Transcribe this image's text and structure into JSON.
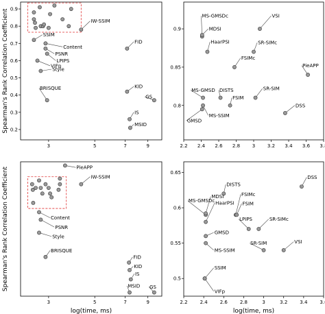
{
  "chart_data": [
    {
      "type": "scatter",
      "xlabel": "",
      "ylabel": "Spearman's Rank Correlation Coefficient",
      "x_scale": "log",
      "xlim": [
        2.2,
        10.5
      ],
      "ylim": [
        0.14,
        0.94
      ],
      "xticks": [
        3,
        5,
        7,
        9
      ],
      "yticks": [
        0.2,
        0.3,
        0.4,
        0.5,
        0.6,
        0.7,
        0.8,
        0.9
      ],
      "grid": false,
      "highlight_box": {
        "x": [
          2.38,
          4.3
        ],
        "y": [
          0.765,
          0.935
        ]
      },
      "points": [
        {
          "x": 2.55,
          "y": 0.88,
          "label": ""
        },
        {
          "x": 2.55,
          "y": 0.84,
          "label": ""
        },
        {
          "x": 2.58,
          "y": 0.82,
          "label": ""
        },
        {
          "x": 2.6,
          "y": 0.79,
          "label": ""
        },
        {
          "x": 2.72,
          "y": 0.91,
          "label": ""
        },
        {
          "x": 2.75,
          "y": 0.8,
          "label": ""
        },
        {
          "x": 2.82,
          "y": 0.8,
          "label": ""
        },
        {
          "x": 2.85,
          "y": 0.81,
          "label": ""
        },
        {
          "x": 3.0,
          "y": 0.79,
          "label": ""
        },
        {
          "x": 3.05,
          "y": 0.87,
          "label": ""
        },
        {
          "x": 3.2,
          "y": 0.92,
          "label": ""
        },
        {
          "x": 3.5,
          "y": 0.84,
          "label": ""
        },
        {
          "x": 3.75,
          "y": 0.8,
          "label": ""
        },
        {
          "x": 3.85,
          "y": 0.9,
          "label": ""
        },
        {
          "x": 4.3,
          "y": 0.78,
          "label": "IW-SSIM",
          "lx": 4.75,
          "ly": 0.83
        },
        {
          "x": 2.55,
          "y": 0.72,
          "label": "SSIM",
          "lx": 2.8,
          "ly": 0.75
        },
        {
          "x": 2.9,
          "y": 0.7,
          "label": "Content",
          "lx": 3.5,
          "ly": 0.68
        },
        {
          "x": 2.9,
          "y": 0.67,
          "label": "PSNR",
          "lx": 3.2,
          "ly": 0.64
        },
        {
          "x": 2.95,
          "y": 0.64,
          "label": "LPIPS",
          "lx": 3.25,
          "ly": 0.6
        },
        {
          "x": 2.65,
          "y": 0.6,
          "label": "VIFp",
          "lx": 3.05,
          "ly": 0.57
        },
        {
          "x": 2.75,
          "y": 0.54,
          "label": "Style",
          "lx": 3.1,
          "ly": 0.55
        },
        {
          "x": 2.95,
          "y": 0.37,
          "label": "BRISQUE",
          "lx": 2.7,
          "ly": 0.44
        },
        {
          "x": 7.15,
          "y": 0.67,
          "label": "FID",
          "lx": 7.7,
          "ly": 0.71
        },
        {
          "x": 7.15,
          "y": 0.42,
          "label": "KID",
          "lx": 7.7,
          "ly": 0.45
        },
        {
          "x": 9.65,
          "y": 0.37,
          "label": "GS",
          "lx": 8.7,
          "ly": 0.39
        },
        {
          "x": 7.35,
          "y": 0.26,
          "label": "IS",
          "lx": 7.7,
          "ly": 0.3
        },
        {
          "x": 7.4,
          "y": 0.21,
          "label": "MSID",
          "lx": 7.7,
          "ly": 0.23
        }
      ]
    },
    {
      "type": "scatter",
      "xlabel": "",
      "ylabel": "",
      "xlim": [
        2.2,
        3.8
      ],
      "ylim": [
        0.755,
        0.935
      ],
      "xticks": [
        2.2,
        2.4,
        2.6,
        2.8,
        3.0,
        3.2,
        3.4,
        3.6,
        3.8
      ],
      "yticks": [
        0.8,
        0.85,
        0.9
      ],
      "grid": false,
      "points": [
        {
          "x": 2.41,
          "y": 0.89,
          "label": "MS-GMSDc",
          "lx": 2.4,
          "ly": 0.917
        },
        {
          "x": 2.41,
          "y": 0.892,
          "label": "MDSI",
          "lx": 2.48,
          "ly": 0.9
        },
        {
          "x": 2.47,
          "y": 0.87,
          "label": "HaarPSI",
          "lx": 2.5,
          "ly": 0.883
        },
        {
          "x": 3.07,
          "y": 0.9,
          "label": "VSI",
          "lx": 3.2,
          "ly": 0.917
        },
        {
          "x": 3.0,
          "y": 0.87,
          "label": "SR-SIMc",
          "lx": 3.04,
          "ly": 0.882
        },
        {
          "x": 2.78,
          "y": 0.85,
          "label": "FSIMc",
          "lx": 2.85,
          "ly": 0.862
        },
        {
          "x": 3.62,
          "y": 0.84,
          "label": "PieAPP",
          "lx": 3.55,
          "ly": 0.852
        },
        {
          "x": 2.42,
          "y": 0.81,
          "label": "MS-GMSD",
          "lx": 2.28,
          "ly": 0.82
        },
        {
          "x": 2.62,
          "y": 0.81,
          "label": "DISTS",
          "lx": 2.6,
          "ly": 0.82
        },
        {
          "x": 2.73,
          "y": 0.8,
          "label": "FSIM",
          "lx": 2.75,
          "ly": 0.81
        },
        {
          "x": 3.02,
          "y": 0.81,
          "label": "SR-SIM",
          "lx": 3.1,
          "ly": 0.822
        },
        {
          "x": 2.42,
          "y": 0.8,
          "label": "MS-SSIM",
          "lx": 2.48,
          "ly": 0.787
        },
        {
          "x": 2.41,
          "y": 0.795,
          "label": "GMSD",
          "lx": 2.23,
          "ly": 0.78
        },
        {
          "x": 3.36,
          "y": 0.79,
          "label": "DSS",
          "lx": 3.47,
          "ly": 0.8
        }
      ]
    },
    {
      "type": "scatter",
      "xlabel": "log(time, ms)",
      "ylabel": "Spearman's Rank Correlation Coefficient",
      "x_scale": "log",
      "xlim": [
        2.2,
        10.5
      ],
      "ylim": [
        0.0,
        0.72
      ],
      "xticks": [
        3,
        5,
        7,
        9
      ],
      "yticks": [],
      "grid": false,
      "highlight_box": {
        "x": [
          2.38,
          3.65
        ],
        "y": [
          0.47,
          0.64
        ]
      },
      "points": [
        {
          "x": 2.5,
          "y": 0.6,
          "label": ""
        },
        {
          "x": 2.52,
          "y": 0.57,
          "label": ""
        },
        {
          "x": 2.53,
          "y": 0.5,
          "label": ""
        },
        {
          "x": 2.6,
          "y": 0.58,
          "label": ""
        },
        {
          "x": 2.7,
          "y": 0.62,
          "label": ""
        },
        {
          "x": 2.75,
          "y": 0.58,
          "label": ""
        },
        {
          "x": 2.8,
          "y": 0.55,
          "label": ""
        },
        {
          "x": 2.9,
          "y": 0.6,
          "label": ""
        },
        {
          "x": 3.0,
          "y": 0.58,
          "label": ""
        },
        {
          "x": 3.05,
          "y": 0.55,
          "label": ""
        },
        {
          "x": 3.1,
          "y": 0.53,
          "label": ""
        },
        {
          "x": 3.35,
          "y": 0.57,
          "label": ""
        },
        {
          "x": 3.4,
          "y": 0.6,
          "label": ""
        },
        {
          "x": 3.4,
          "y": 0.63,
          "label": ""
        },
        {
          "x": 3.6,
          "y": 0.7,
          "label": "PieAPP",
          "lx": 4.05,
          "ly": 0.69
        },
        {
          "x": 4.3,
          "y": 0.6,
          "label": "IW-SSIM",
          "lx": 4.75,
          "ly": 0.64
        },
        {
          "x": 2.7,
          "y": 0.45,
          "label": "Content",
          "lx": 3.05,
          "ly": 0.42
        },
        {
          "x": 2.75,
          "y": 0.41,
          "label": "PSNR",
          "lx": 3.2,
          "ly": 0.37
        },
        {
          "x": 2.7,
          "y": 0.34,
          "label": "Style",
          "lx": 3.1,
          "ly": 0.32
        },
        {
          "x": 2.9,
          "y": 0.21,
          "label": "BRISQUE",
          "lx": 3.05,
          "ly": 0.245
        },
        {
          "x": 7.3,
          "y": 0.18,
          "label": "FID",
          "lx": 7.6,
          "ly": 0.21
        },
        {
          "x": 7.35,
          "y": 0.14,
          "label": "KID",
          "lx": 7.65,
          "ly": 0.16
        },
        {
          "x": 7.45,
          "y": 0.09,
          "label": "IS",
          "lx": 7.75,
          "ly": 0.12
        },
        {
          "x": 7.35,
          "y": 0.02,
          "label": "MSID",
          "lx": 7.15,
          "ly": 0.055
        },
        {
          "x": 9.65,
          "y": 0.02,
          "label": "GS",
          "lx": 9.1,
          "ly": 0.05
        }
      ]
    },
    {
      "type": "scatter",
      "xlabel": "log(time, ms)",
      "ylabel": "",
      "xlim": [
        2.2,
        3.6
      ],
      "ylim": [
        0.475,
        0.665
      ],
      "xticks": [
        2.2,
        2.4,
        2.6,
        2.8,
        3.0,
        3.2,
        3.4,
        3.6
      ],
      "yticks": [
        0.5,
        0.55,
        0.6,
        0.65
      ],
      "grid": false,
      "points": [
        {
          "x": 3.38,
          "y": 0.63,
          "label": "DSS",
          "lx": 3.43,
          "ly": 0.643
        },
        {
          "x": 2.6,
          "y": 0.62,
          "label": "DISTS",
          "lx": 2.62,
          "ly": 0.633
        },
        {
          "x": 2.42,
          "y": 0.59,
          "label": "MS-GMSDc",
          "lx": 2.24,
          "ly": 0.61
        },
        {
          "x": 2.42,
          "y": 0.592,
          "label": "MDSI",
          "lx": 2.47,
          "ly": 0.616
        },
        {
          "x": 2.42,
          "y": 0.58,
          "label": "HaarPSI",
          "lx": 2.51,
          "ly": 0.607
        },
        {
          "x": 2.72,
          "y": 0.59,
          "label": "FSIMc",
          "lx": 2.77,
          "ly": 0.619
        },
        {
          "x": 2.73,
          "y": 0.59,
          "label": "FSIM",
          "lx": 2.78,
          "ly": 0.606
        },
        {
          "x": 2.85,
          "y": 0.57,
          "label": "LPIPS",
          "lx": 2.75,
          "ly": 0.584
        },
        {
          "x": 2.95,
          "y": 0.57,
          "label": "SR-SIMc",
          "lx": 3.05,
          "ly": 0.584
        },
        {
          "x": 2.42,
          "y": 0.56,
          "label": "GMSD",
          "lx": 2.5,
          "ly": 0.565
        },
        {
          "x": 2.42,
          "y": 0.55,
          "label": "MS-SSIM",
          "lx": 2.5,
          "ly": 0.54
        },
        {
          "x": 3.0,
          "y": 0.54,
          "label": "SR-SIM",
          "lx": 2.86,
          "ly": 0.55
        },
        {
          "x": 3.2,
          "y": 0.54,
          "label": "VSI",
          "lx": 3.3,
          "ly": 0.552
        },
        {
          "x": 2.41,
          "y": 0.5,
          "label": "SSIM",
          "lx": 2.5,
          "ly": 0.515
        },
        {
          "x": 2.41,
          "y": 0.5,
          "label": "VIFp",
          "lx": 2.5,
          "ly": 0.482
        }
      ]
    }
  ]
}
